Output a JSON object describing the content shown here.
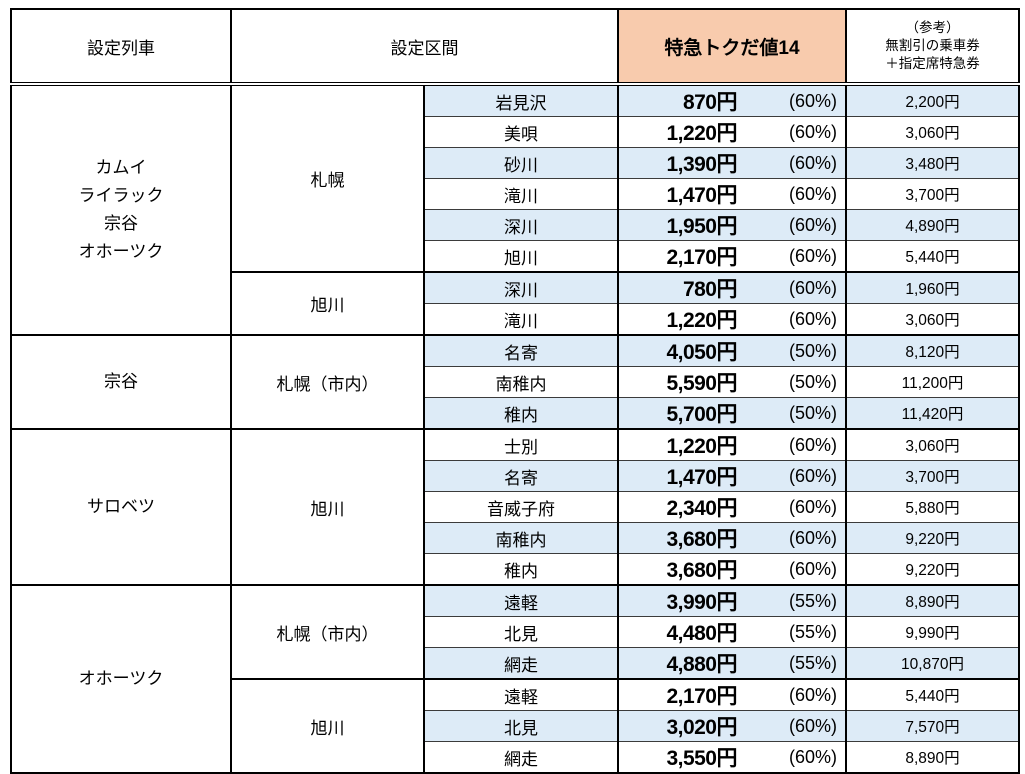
{
  "table": {
    "colors": {
      "discount_header_bg": "#F8CBAD",
      "stripe_bg": "#DDEBF7",
      "border": "#000000"
    },
    "header": {
      "train": "設定列車",
      "section": "設定区間",
      "discount": "特急トクだ値14",
      "reference_lines": [
        "（参考）",
        "無割引の乗車券",
        "＋指定席特急券"
      ]
    },
    "groups": [
      {
        "train_lines": [
          "カムイ",
          "ライラック",
          "宗谷",
          "オホーツク"
        ],
        "origins": [
          {
            "origin": "札幌",
            "rows": [
              {
                "station": "岩見沢",
                "fare": "870円",
                "pct": "(60%)",
                "reference": "2,200円"
              },
              {
                "station": "美唄",
                "fare": "1,220円",
                "pct": "(60%)",
                "reference": "3,060円"
              },
              {
                "station": "砂川",
                "fare": "1,390円",
                "pct": "(60%)",
                "reference": "3,480円"
              },
              {
                "station": "滝川",
                "fare": "1,470円",
                "pct": "(60%)",
                "reference": "3,700円"
              },
              {
                "station": "深川",
                "fare": "1,950円",
                "pct": "(60%)",
                "reference": "4,890円"
              },
              {
                "station": "旭川",
                "fare": "2,170円",
                "pct": "(60%)",
                "reference": "5,440円"
              }
            ]
          },
          {
            "origin": "旭川",
            "rows": [
              {
                "station": "深川",
                "fare": "780円",
                "pct": "(60%)",
                "reference": "1,960円"
              },
              {
                "station": "滝川",
                "fare": "1,220円",
                "pct": "(60%)",
                "reference": "3,060円"
              }
            ]
          }
        ]
      },
      {
        "train_lines": [
          "宗谷"
        ],
        "origins": [
          {
            "origin": "札幌（市内）",
            "rows": [
              {
                "station": "名寄",
                "fare": "4,050円",
                "pct": "(50%)",
                "reference": "8,120円"
              },
              {
                "station": "南稚内",
                "fare": "5,590円",
                "pct": "(50%)",
                "reference": "11,200円"
              },
              {
                "station": "稚内",
                "fare": "5,700円",
                "pct": "(50%)",
                "reference": "11,420円"
              }
            ]
          }
        ]
      },
      {
        "train_lines": [
          "サロベツ"
        ],
        "origins": [
          {
            "origin": "旭川",
            "rows": [
              {
                "station": "士別",
                "fare": "1,220円",
                "pct": "(60%)",
                "reference": "3,060円"
              },
              {
                "station": "名寄",
                "fare": "1,470円",
                "pct": "(60%)",
                "reference": "3,700円"
              },
              {
                "station": "音威子府",
                "fare": "2,340円",
                "pct": "(60%)",
                "reference": "5,880円"
              },
              {
                "station": "南稚内",
                "fare": "3,680円",
                "pct": "(60%)",
                "reference": "9,220円"
              },
              {
                "station": "稚内",
                "fare": "3,680円",
                "pct": "(60%)",
                "reference": "9,220円"
              }
            ]
          }
        ]
      },
      {
        "train_lines": [
          "オホーツク"
        ],
        "origins": [
          {
            "origin": "札幌（市内）",
            "rows": [
              {
                "station": "遠軽",
                "fare": "3,990円",
                "pct": "(55%)",
                "reference": "8,890円"
              },
              {
                "station": "北見",
                "fare": "4,480円",
                "pct": "(55%)",
                "reference": "9,990円"
              },
              {
                "station": "網走",
                "fare": "4,880円",
                "pct": "(55%)",
                "reference": "10,870円"
              }
            ]
          },
          {
            "origin": "旭川",
            "rows": [
              {
                "station": "遠軽",
                "fare": "2,170円",
                "pct": "(60%)",
                "reference": "5,440円"
              },
              {
                "station": "北見",
                "fare": "3,020円",
                "pct": "(60%)",
                "reference": "7,570円"
              },
              {
                "station": "網走",
                "fare": "3,550円",
                "pct": "(60%)",
                "reference": "8,890円"
              }
            ]
          }
        ]
      }
    ]
  }
}
